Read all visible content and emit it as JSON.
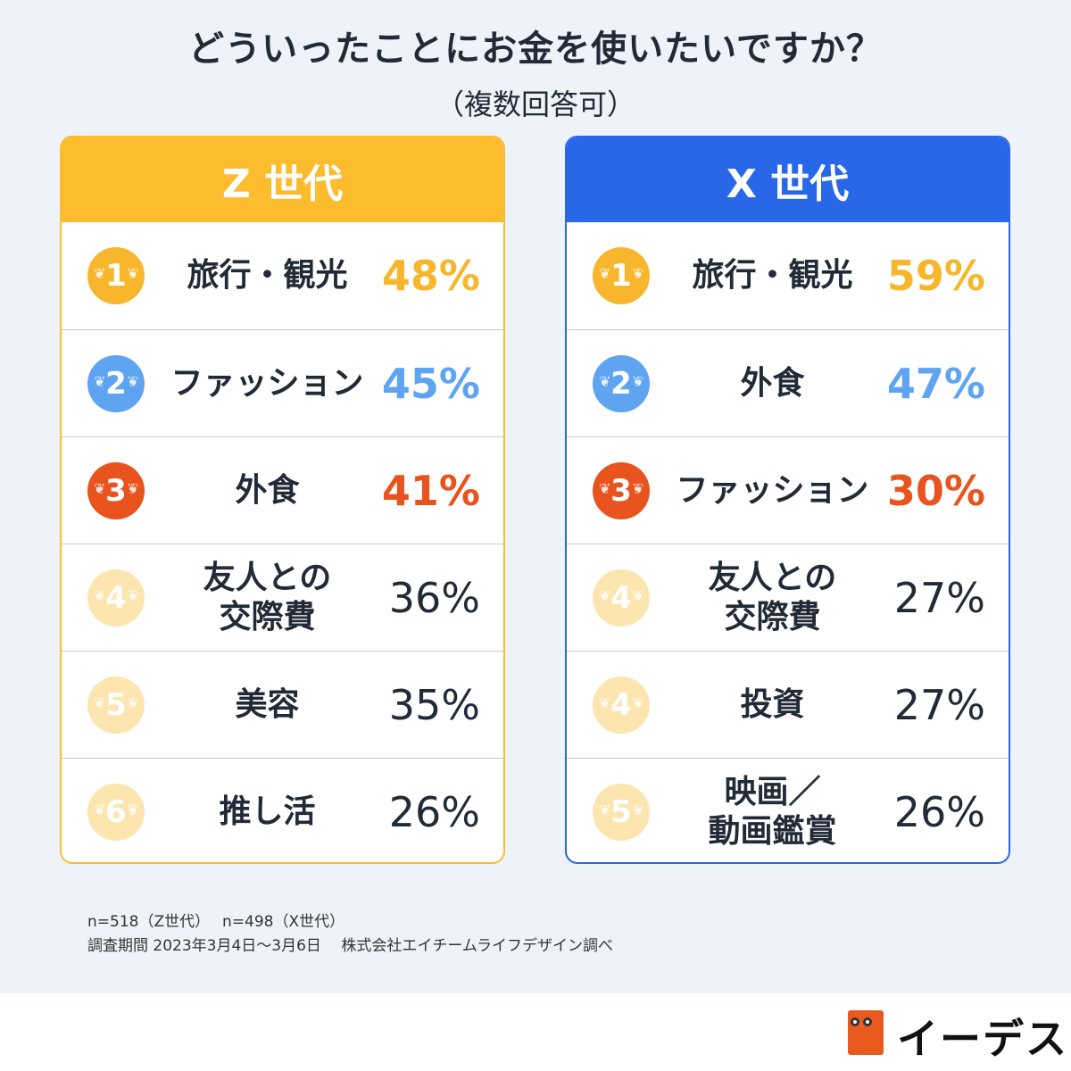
{
  "title": "どういったことにお金を使いたいですか？",
  "subtitle": "（複数回答可）",
  "colors": {
    "gold": "#f8b62d",
    "blue": "#5ea4f0",
    "orange": "#e8531e",
    "faded": "#fde5b0",
    "text": "#232a37",
    "z_header": "#fbbd2e",
    "x_header": "#2767e8"
  },
  "z": {
    "header": "Z 世代",
    "rows": [
      {
        "rank": "1",
        "label": "旅行・観光",
        "pct": "48%",
        "medal": "gold"
      },
      {
        "rank": "2",
        "label": "ファッション",
        "pct": "45%",
        "medal": "blue"
      },
      {
        "rank": "3",
        "label": "外食",
        "pct": "41%",
        "medal": "orange"
      },
      {
        "rank": "4",
        "label": "友人との\n交際費",
        "pct": "36%",
        "medal": "faded"
      },
      {
        "rank": "5",
        "label": "美容",
        "pct": "35%",
        "medal": "faded"
      },
      {
        "rank": "6",
        "label": "推し活",
        "pct": "26%",
        "medal": "faded"
      }
    ]
  },
  "x": {
    "header": "X 世代",
    "rows": [
      {
        "rank": "1",
        "label": "旅行・観光",
        "pct": "59%",
        "medal": "gold"
      },
      {
        "rank": "2",
        "label": "外食",
        "pct": "47%",
        "medal": "blue"
      },
      {
        "rank": "3",
        "label": "ファッション",
        "pct": "30%",
        "medal": "orange"
      },
      {
        "rank": "4",
        "label": "友人との\n交際費",
        "pct": "27%",
        "medal": "faded"
      },
      {
        "rank": "4",
        "label": "投資",
        "pct": "27%",
        "medal": "faded"
      },
      {
        "rank": "5",
        "label": "映画／\n動画鑑賞",
        "pct": "26%",
        "medal": "faded"
      }
    ]
  },
  "footer": {
    "line1": "n=518（Z世代）　 n=498（X世代）",
    "line2": "調査期間  2023年3月4日～3月6日　 株式会社エイチームライフデザイン調べ"
  },
  "logo": {
    "text": "イーデス"
  }
}
